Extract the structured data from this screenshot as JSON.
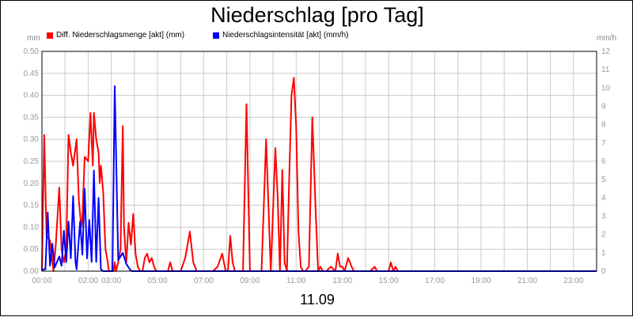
{
  "chart_data": {
    "type": "line",
    "title": "Niederschlag [pro Tag]",
    "xlabel": "11.09",
    "ylabel_left": "mm",
    "ylabel_right": "mm/h",
    "x_tick_labels": [
      "00:00",
      "02:00",
      "03:00",
      "05:00",
      "07:00",
      "09:00",
      "11:00",
      "13:00",
      "15:00",
      "17:00",
      "19:00",
      "21:00",
      "23:00"
    ],
    "x_tick_hours": [
      0,
      2,
      3,
      5,
      7,
      9,
      11,
      13,
      15,
      17,
      19,
      21,
      23
    ],
    "x_grid_hours": [
      1,
      2,
      3,
      4,
      5,
      6,
      7,
      8,
      9,
      10,
      11,
      12,
      13,
      14,
      15,
      16,
      17,
      18,
      19,
      20,
      21,
      22,
      23
    ],
    "xlim": [
      0,
      24
    ],
    "ylim_left": [
      0,
      0.5
    ],
    "ylim_right": [
      0,
      12
    ],
    "y_left_ticks": [
      "0.00",
      "0.05",
      "0.10",
      "0.15",
      "0.20",
      "0.25",
      "0.30",
      "0.35",
      "0.40",
      "0.45",
      "0.50"
    ],
    "y_right_ticks": [
      "0",
      "1",
      "2",
      "3",
      "4",
      "5",
      "6",
      "7",
      "8",
      "9",
      "10",
      "11",
      "12"
    ],
    "grid": true,
    "legend_position": "top-left",
    "series": [
      {
        "name": "Diff. Niederschlagsmenge [akt] (mm)",
        "axis": "left",
        "color": "#ff0000",
        "x": [
          0,
          0.1,
          0.2,
          0.35,
          0.5,
          0.6,
          0.75,
          0.85,
          0.95,
          1.05,
          1.15,
          1.25,
          1.35,
          1.5,
          1.6,
          1.7,
          1.75,
          1.85,
          2.0,
          2.1,
          2.2,
          2.25,
          2.35,
          2.45,
          2.5,
          2.55,
          2.65,
          2.75,
          2.85,
          2.9,
          2.95,
          3.0,
          3.1,
          3.15,
          3.2,
          3.3,
          3.4,
          3.5,
          3.55,
          3.65,
          3.75,
          3.85,
          3.95,
          4.05,
          4.15,
          4.25,
          4.3,
          4.35,
          4.45,
          4.55,
          4.65,
          4.75,
          4.85,
          4.95,
          5.1,
          5.2,
          5.35,
          5.45,
          5.55,
          5.65,
          5.75,
          6.0,
          6.2,
          6.4,
          6.55,
          6.7,
          6.85,
          6.95,
          7.05,
          7.2,
          7.4,
          7.6,
          7.8,
          7.95,
          8.05,
          8.15,
          8.25,
          8.35,
          8.5,
          8.7,
          8.85,
          9.0,
          9.1,
          9.2,
          9.3,
          9.4,
          9.5,
          9.7,
          9.9,
          10.1,
          10.2,
          10.3,
          10.4,
          10.5,
          10.6,
          10.7,
          10.8,
          10.9,
          11.0,
          11.1,
          11.2,
          11.3,
          11.4,
          11.55,
          11.7,
          11.85,
          11.95,
          12.05,
          12.15,
          12.3,
          12.5,
          12.7,
          12.8,
          12.9,
          13.0,
          13.1,
          13.25,
          13.4,
          13.5,
          13.6,
          13.8,
          14.0,
          14.2,
          14.4,
          14.5,
          14.6,
          14.8,
          15.0,
          15.1,
          15.2,
          15.3,
          15.4,
          15.5,
          16.0,
          18.0,
          20.0,
          22.0,
          24.0
        ],
        "values": [
          0,
          0.31,
          0.08,
          0.07,
          0.0,
          0.06,
          0.19,
          0.05,
          0.02,
          0.05,
          0.31,
          0.27,
          0.24,
          0.3,
          0.16,
          0.1,
          0.12,
          0.26,
          0.25,
          0.36,
          0.24,
          0.36,
          0.3,
          0.27,
          0.2,
          0.24,
          0.18,
          0.05,
          0.02,
          0.0,
          0.0,
          0.0,
          0.0,
          0.02,
          0.0,
          0.02,
          0.05,
          0.33,
          0.1,
          0.02,
          0.11,
          0.06,
          0.13,
          0.04,
          0.01,
          0.0,
          0.0,
          0.0,
          0.03,
          0.04,
          0.02,
          0.03,
          0.01,
          0.0,
          0.0,
          0.0,
          0.0,
          0.0,
          0.02,
          0.0,
          0.0,
          0.0,
          0.03,
          0.09,
          0.02,
          0.0,
          0.0,
          0.0,
          0.0,
          0.0,
          0.0,
          0.01,
          0.04,
          0.0,
          0.0,
          0.08,
          0.02,
          0.0,
          0.0,
          0.0,
          0.38,
          0.0,
          0.0,
          0.0,
          0.0,
          0.0,
          0.0,
          0.3,
          0.0,
          0.28,
          0.17,
          0.0,
          0.23,
          0.02,
          0.0,
          0.21,
          0.4,
          0.44,
          0.33,
          0.09,
          0.01,
          0.0,
          0.0,
          0.01,
          0.35,
          0.13,
          0.0,
          0.01,
          0.0,
          0.0,
          0.01,
          0.0,
          0.04,
          0.01,
          0.01,
          0.0,
          0.03,
          0.01,
          0.0,
          0.0,
          0.0,
          0.0,
          0.0,
          0.01,
          0.0,
          0.0,
          0.0,
          0.0,
          0.02,
          0.0,
          0.01,
          0.0,
          0.0,
          0.0,
          0.0,
          0.0,
          0.0,
          0.0
        ]
      },
      {
        "name": "Niederschlagsintensität [akt] (mm/h)",
        "axis": "right",
        "color": "#0000ff",
        "x": [
          0,
          0.05,
          0.15,
          0.25,
          0.35,
          0.45,
          0.55,
          0.65,
          0.75,
          0.85,
          0.95,
          1.05,
          1.15,
          1.25,
          1.35,
          1.45,
          1.5,
          1.65,
          1.75,
          1.85,
          1.95,
          2.05,
          2.15,
          2.25,
          2.35,
          2.45,
          2.55,
          2.65,
          2.75,
          2.85,
          2.95,
          3.05,
          3.15,
          3.3,
          3.5,
          3.65,
          3.8,
          3.9,
          4.0,
          4.1,
          4.2,
          4.3,
          4.4,
          4.5,
          4.6,
          4.7,
          4.8,
          4.9,
          5.0,
          5.1,
          5.2,
          5.3,
          5.4,
          5.5,
          5.6,
          5.7,
          5.8,
          5.9,
          6.0,
          6.2,
          6.4,
          6.5,
          6.6,
          6.7,
          6.8,
          6.9,
          7.0,
          7.2,
          7.4,
          7.6,
          7.8,
          8.0,
          8.1,
          8.2,
          8.3,
          8.4,
          8.6,
          8.8,
          9.0,
          9.2,
          9.35,
          9.5,
          9.7,
          9.9,
          10.1,
          10.2,
          10.3,
          10.4,
          10.5,
          10.6,
          10.7,
          10.8,
          10.9,
          11.0,
          11.1,
          11.2,
          11.3,
          11.4,
          11.5,
          11.6,
          11.7,
          11.8,
          11.9,
          12.0,
          12.2,
          12.4,
          12.6,
          12.8,
          12.9,
          13.0,
          13.1,
          13.2,
          13.3,
          13.4,
          13.6,
          13.8,
          14.0,
          14.2,
          14.4,
          14.6,
          14.8,
          15.0,
          15.2,
          15.4,
          15.6,
          16.0,
          18.0,
          20.0,
          22.0,
          24.0
        ],
        "values": [
          0,
          0.1,
          0.1,
          3.2,
          0.3,
          1.5,
          0.2,
          0.5,
          0.8,
          0.3,
          2.2,
          0.5,
          2.7,
          0.7,
          4.1,
          0.5,
          0.1,
          2.7,
          0.9,
          4.5,
          0.7,
          2.8,
          0.5,
          5.5,
          0.5,
          4.0,
          0.1,
          0.0,
          0.0,
          0.0,
          0.0,
          0.0,
          10.1,
          0.6,
          1.0,
          0.4,
          0.1,
          0.0,
          0.0,
          0.0,
          0.0,
          0.0,
          0.0,
          0.0,
          0.0,
          0.0,
          0.0,
          0.0,
          0.0,
          0.0,
          0.0,
          0.0,
          0.0,
          0.0,
          0.0,
          0.0,
          0.0,
          0.0,
          0.0,
          0.0,
          0.0,
          0.0,
          0.0,
          0.0,
          0.0,
          0.0,
          0.0,
          0.0,
          0.0,
          0.0,
          0.0,
          0.0,
          0.0,
          0.0,
          0.0,
          0.0,
          0.0,
          0.0,
          0.0,
          0.0,
          0.0,
          0.0,
          0.0,
          0.0,
          0.0,
          0.0,
          0.0,
          0.0,
          0.0,
          0.0,
          0.0,
          0.0,
          0.0,
          0.0,
          0.0,
          0.0,
          0.0,
          0.0,
          0.0,
          0.0,
          0.0,
          0.0,
          0.0,
          0.0,
          0.0,
          0.0,
          0.0,
          0.0,
          0.0,
          0.0,
          0.0,
          0.0,
          0.0,
          0.0,
          0.0,
          0.0,
          0.0,
          0.0,
          0.0,
          0.0,
          0.0,
          0.0,
          0.0,
          0.0,
          0.0,
          0.0,
          0.0,
          0.0,
          0.0,
          0.0
        ]
      }
    ]
  }
}
